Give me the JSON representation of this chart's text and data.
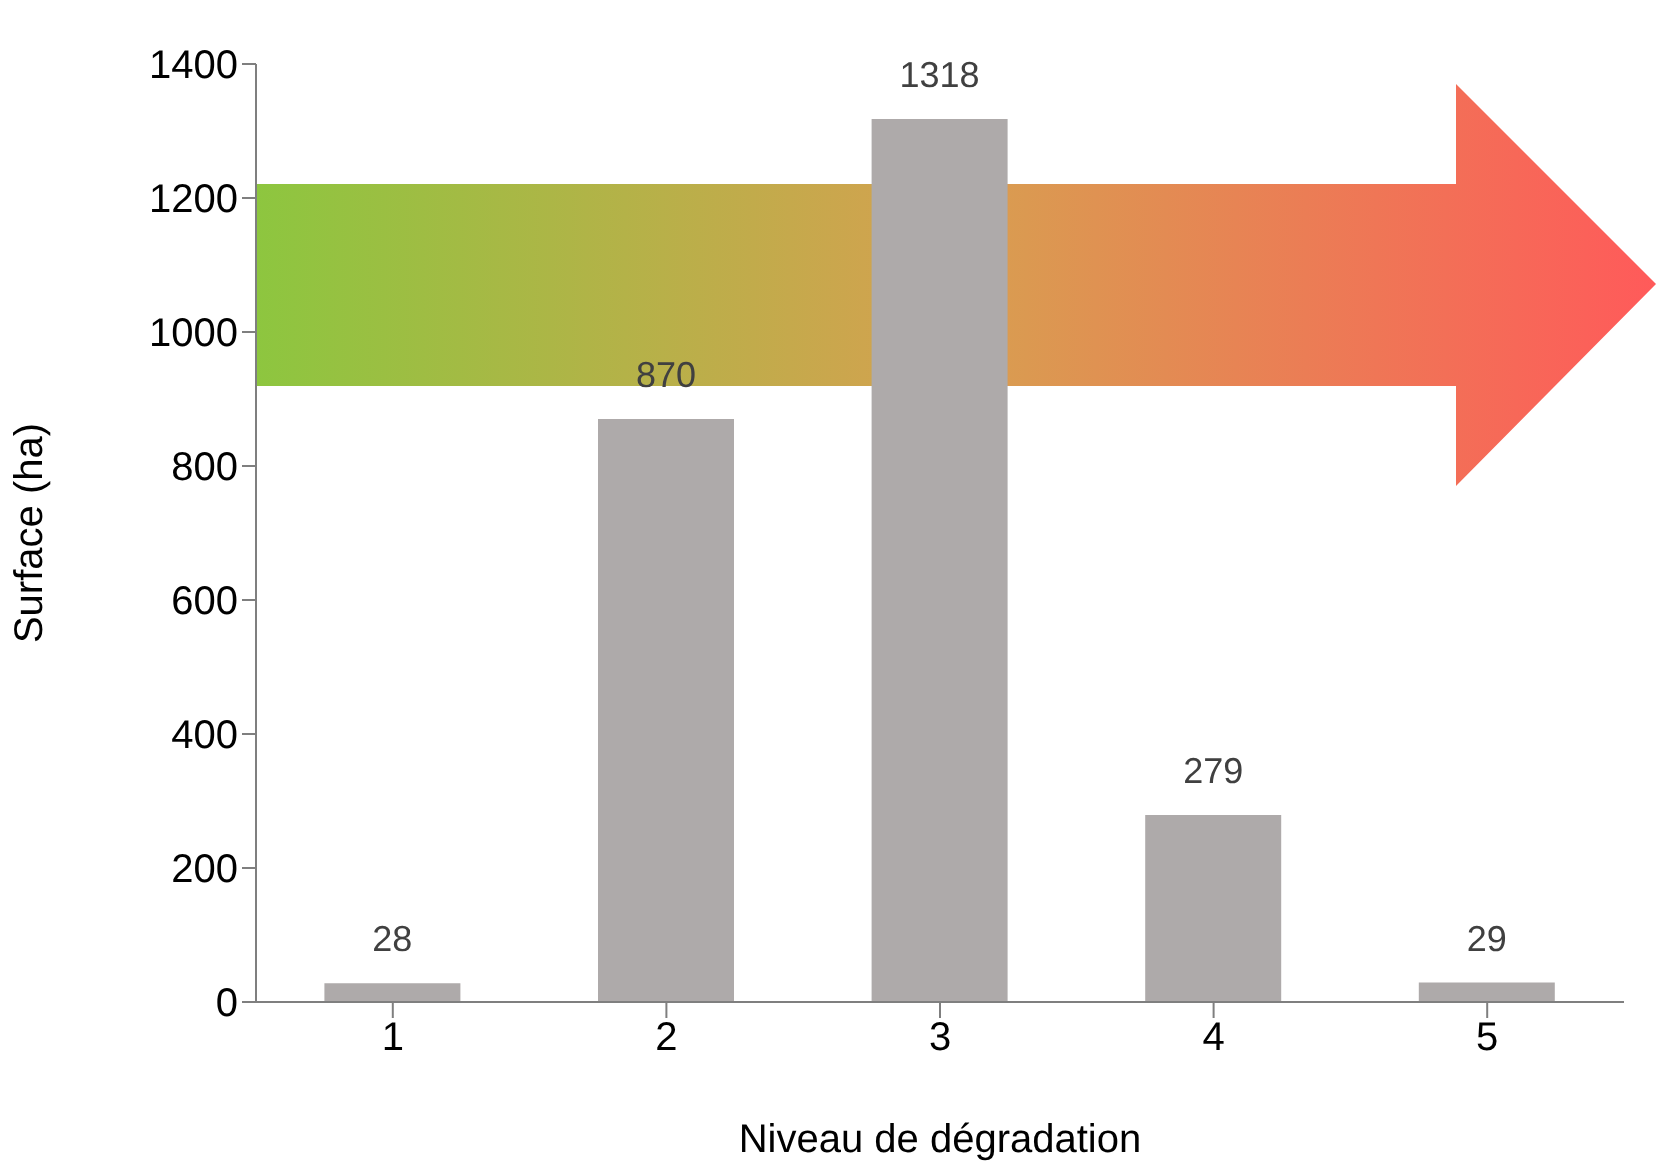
{
  "chart_data": {
    "type": "bar",
    "xlabel": "Niveau de dégradation",
    "ylabel": "Surface (ha)",
    "categories": [
      "1",
      "2",
      "3",
      "4",
      "5"
    ],
    "values": [
      28,
      870,
      1318,
      279,
      29
    ],
    "color": "#aeaaaa",
    "ylim": [
      0,
      1400
    ],
    "yticks": [
      0,
      200,
      400,
      600,
      800,
      1000,
      1200,
      1400
    ],
    "data_labels": true,
    "grid": false,
    "legend": false
  }
}
